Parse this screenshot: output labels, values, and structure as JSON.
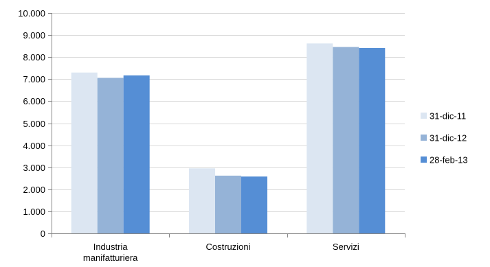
{
  "chart_data": {
    "type": "bar",
    "categories": [
      [
        "Industria",
        "manifatturiera"
      ],
      [
        "Costruzioni"
      ],
      [
        "Servizi"
      ]
    ],
    "series": [
      {
        "name": "31-dic-11",
        "color": "#dce6f2",
        "values": [
          7300,
          2950,
          8620
        ]
      },
      {
        "name": "31-dic-12",
        "color": "#95b3d7",
        "values": [
          7060,
          2620,
          8460
        ]
      },
      {
        "name": "28-feb-13",
        "color": "#558ed5",
        "values": [
          7170,
          2580,
          8410
        ]
      }
    ],
    "ylim": [
      0,
      10000
    ],
    "yticks": [
      0,
      1000,
      2000,
      3000,
      4000,
      5000,
      6000,
      7000,
      8000,
      9000,
      10000
    ],
    "ytick_labels": [
      "0",
      "1.000",
      "2.000",
      "3.000",
      "4.000",
      "5.000",
      "6.000",
      "7.000",
      "8.000",
      "9.000",
      "10.000"
    ],
    "grid": true,
    "legend_position": "right"
  }
}
